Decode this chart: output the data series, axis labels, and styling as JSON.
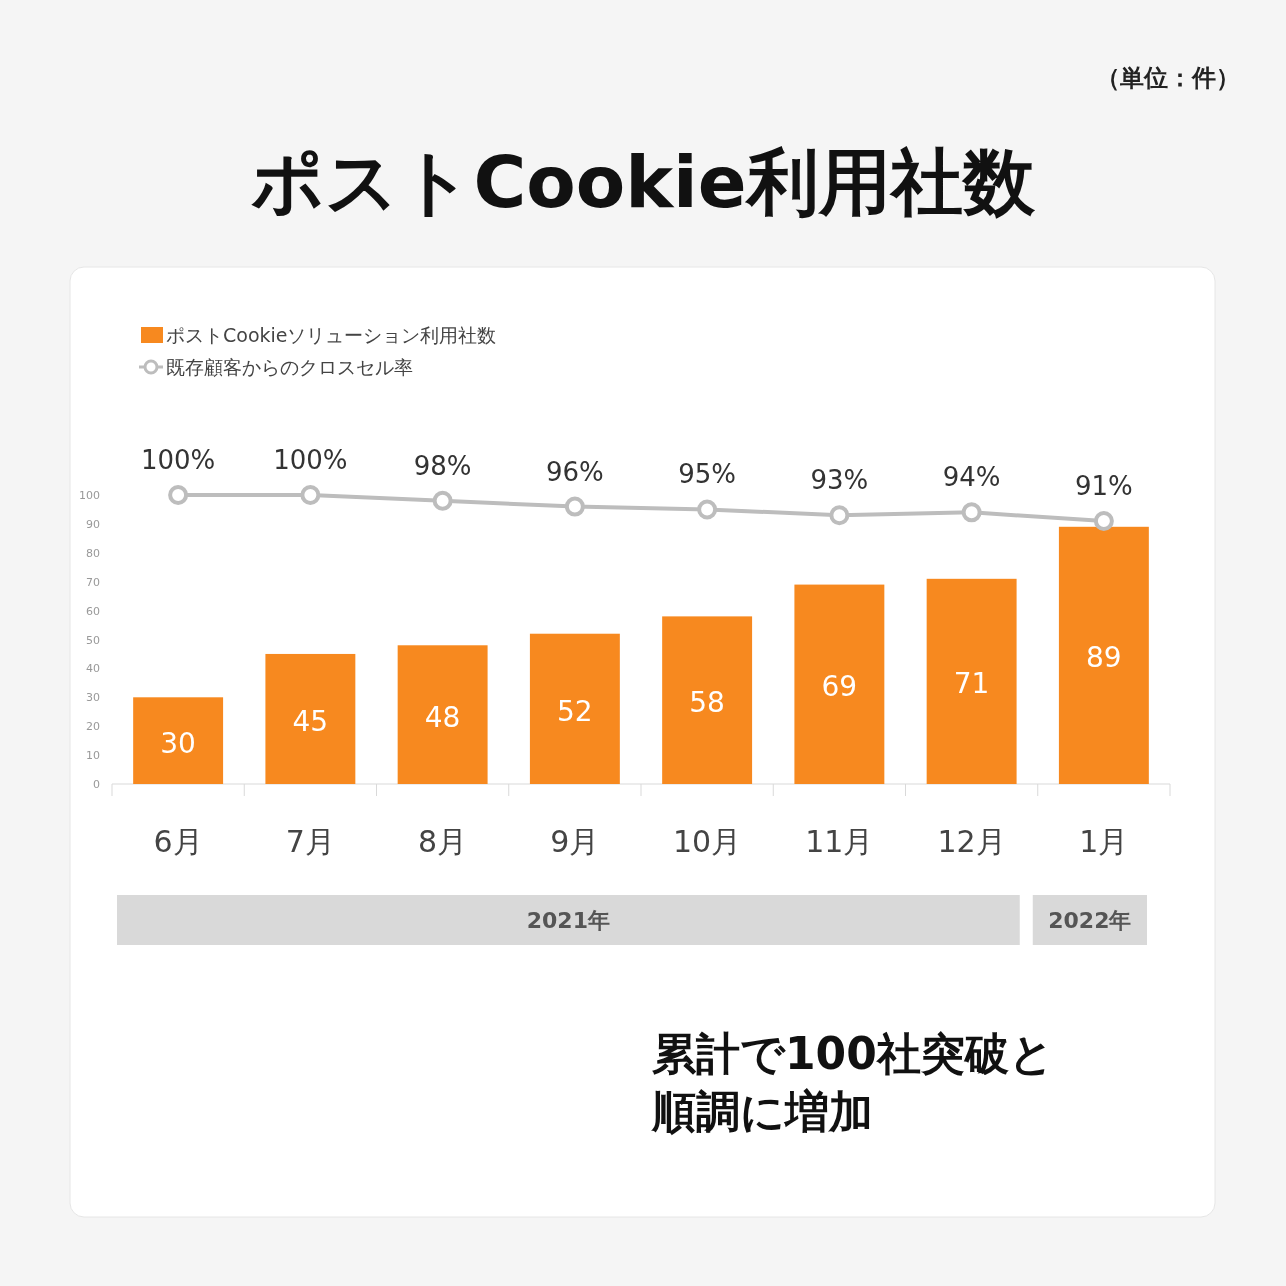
{
  "chart_data": {
    "type": "bar",
    "title": "ポストCookie利用社数",
    "categories": [
      "6月",
      "7月",
      "8月",
      "9月",
      "10月",
      "11月",
      "12月",
      "1月"
    ],
    "series": [
      {
        "name": "ポストCookieソリューション利用社数",
        "color": "#f7891f",
        "values": [
          30,
          45,
          48,
          52,
          58,
          69,
          71,
          89
        ],
        "value_labels": [
          "30",
          "45",
          "48",
          "52",
          "58",
          "69",
          "71",
          "89"
        ]
      },
      {
        "name": "既存顧客からのクロスセル率",
        "type": "line",
        "color": "#bdbdbd",
        "values": [
          100,
          100,
          98,
          96,
          95,
          93,
          94,
          91
        ],
        "value_labels": [
          "100%",
          "100%",
          "98%",
          "96%",
          "95%",
          "93%",
          "94%",
          "91%"
        ]
      }
    ],
    "ylim": [
      0,
      100
    ],
    "yticks": [
      0,
      10,
      20,
      30,
      40,
      50,
      60,
      70,
      80,
      90,
      100
    ],
    "annotations": [
      "（単位：件）",
      "累計で100社突破と順調に増加",
      "2021年",
      "2022年"
    ],
    "legend": "top left",
    "marker": "circle",
    "line_style": "solid",
    "grid": false
  }
}
